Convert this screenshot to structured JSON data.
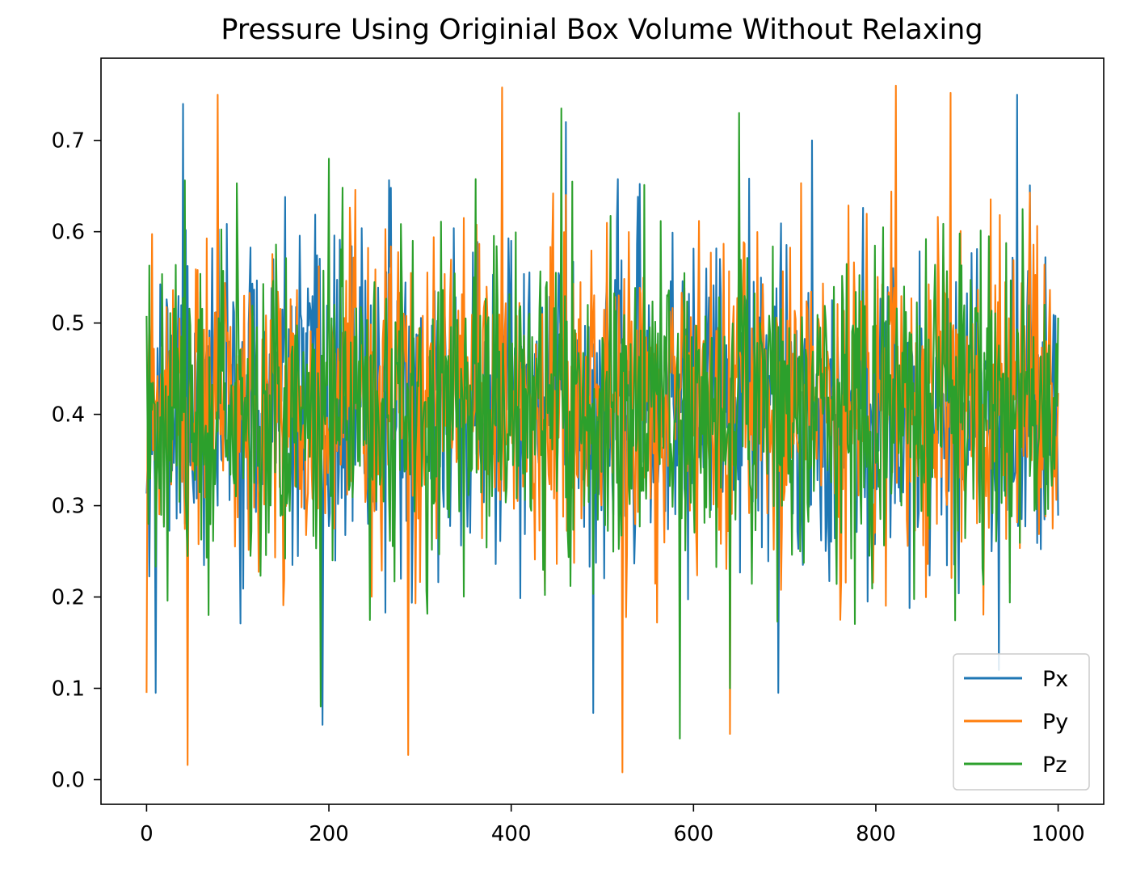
{
  "chart_data": {
    "type": "line",
    "title": "Pressure Using Originial Box Volume Without Relaxing",
    "xlabel": "",
    "ylabel": "",
    "xlim": [
      -50,
      1050
    ],
    "ylim": [
      -0.027,
      0.79
    ],
    "xticks": [
      0,
      200,
      400,
      600,
      800,
      1000
    ],
    "xtick_labels": [
      "0",
      "200",
      "400",
      "600",
      "800",
      "1000"
    ],
    "yticks": [
      0.0,
      0.1,
      0.2,
      0.3,
      0.4,
      0.5,
      0.6,
      0.7
    ],
    "ytick_labels": [
      "0.0",
      "0.1",
      "0.2",
      "0.3",
      "0.4",
      "0.5",
      "0.6",
      "0.7"
    ],
    "grid": false,
    "legend_position": "lower right",
    "x_range": [
      0,
      1000
    ],
    "series": [
      {
        "name": "Px",
        "color": "#1f77b4",
        "mean": 0.41,
        "values_summary": "noisy fluctuation between ~0.06 and ~0.75 over x = 0..1000",
        "peaks": [
          {
            "x": 40,
            "y": 0.74
          },
          {
            "x": 460,
            "y": 0.72
          },
          {
            "x": 730,
            "y": 0.7
          },
          {
            "x": 955,
            "y": 0.75
          }
        ],
        "troughs": [
          {
            "x": 10,
            "y": 0.095
          },
          {
            "x": 193,
            "y": 0.06
          },
          {
            "x": 490,
            "y": 0.073
          },
          {
            "x": 693,
            "y": 0.095
          },
          {
            "x": 935,
            "y": 0.12
          }
        ]
      },
      {
        "name": "Py",
        "color": "#ff7f0e",
        "mean": 0.41,
        "values_summary": "noisy fluctuation between ~0.01 and ~0.76 over x = 0..1000",
        "peaks": [
          {
            "x": 78,
            "y": 0.75
          },
          {
            "x": 390,
            "y": 0.758
          },
          {
            "x": 822,
            "y": 0.76
          },
          {
            "x": 882,
            "y": 0.752
          }
        ],
        "troughs": [
          {
            "x": 0,
            "y": 0.095
          },
          {
            "x": 45,
            "y": 0.016
          },
          {
            "x": 287,
            "y": 0.027
          },
          {
            "x": 522,
            "y": 0.008
          },
          {
            "x": 640,
            "y": 0.05
          }
        ]
      },
      {
        "name": "Pz",
        "color": "#2ca02c",
        "mean": 0.41,
        "values_summary": "noisy fluctuation between ~0.045 and ~0.735 over x = 0..1000",
        "peaks": [
          {
            "x": 455,
            "y": 0.735
          },
          {
            "x": 650,
            "y": 0.73
          },
          {
            "x": 200,
            "y": 0.68
          }
        ],
        "troughs": [
          {
            "x": 191,
            "y": 0.08
          },
          {
            "x": 585,
            "y": 0.045
          },
          {
            "x": 640,
            "y": 0.1
          }
        ]
      }
    ]
  }
}
